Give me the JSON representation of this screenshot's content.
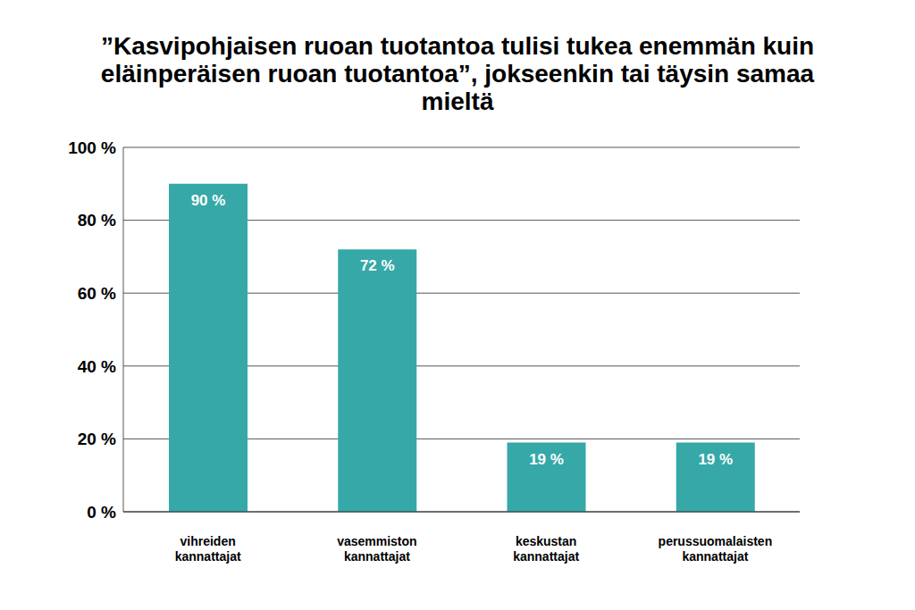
{
  "chart_data": {
    "type": "bar",
    "title": "”Kasvipohjaisen ruoan tuotantoa tulisi tukea enemmän kuin eläinperäisen ruoan tuotantoa”, jokseenkin tai täysin samaa mieltä",
    "categories": [
      "vihreiden kannattajat",
      "vasemmiston kannattajat",
      "keskustan kannattajat",
      "perussuomalaisten kannattajat"
    ],
    "values": [
      90,
      72,
      19,
      19
    ],
    "value_labels": [
      "90 %",
      "72 %",
      "19 %",
      "19 %"
    ],
    "color": "#36a8a8",
    "ylim": [
      0,
      100
    ],
    "yticks": [
      {
        "value": 0,
        "label": "0 %"
      },
      {
        "value": 20,
        "label": "20 %"
      },
      {
        "value": 40,
        "label": "40 %"
      },
      {
        "value": 60,
        "label": "60 %"
      },
      {
        "value": 80,
        "label": "80 %"
      },
      {
        "value": 100,
        "label": "100 %"
      }
    ],
    "grid": true,
    "data_labels": true
  }
}
